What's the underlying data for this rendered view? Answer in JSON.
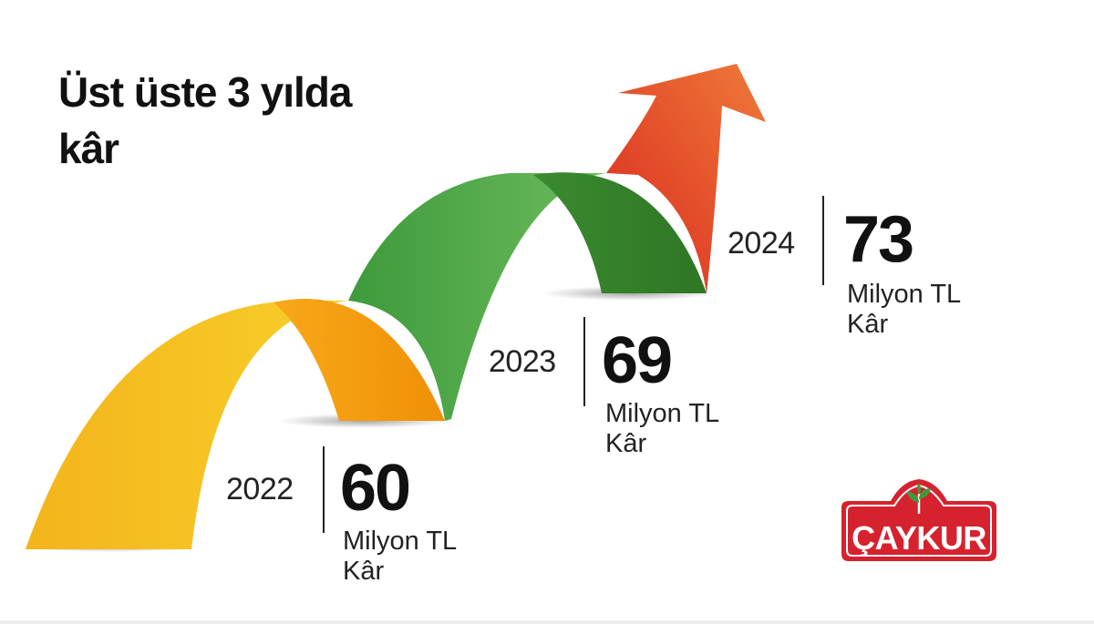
{
  "title": {
    "line1": "Üst üste 3  yılda",
    "line2": "kâr"
  },
  "chart_data": {
    "type": "bar",
    "title": "Üst üste 3  yılda kâr",
    "categories": [
      "2022",
      "2023",
      "2024"
    ],
    "values": [
      60,
      69,
      73
    ],
    "value_labels": [
      "60",
      "69",
      "73"
    ],
    "unit_line1": "Milyon TL",
    "unit_line2": "Kâr",
    "colors": [
      "#f5b914",
      "#4caa47",
      "#e6452a"
    ]
  },
  "logo": {
    "text": "ÇAYKUR",
    "color": "#d6222f",
    "leaf_icon": "tea-leaf-icon"
  }
}
